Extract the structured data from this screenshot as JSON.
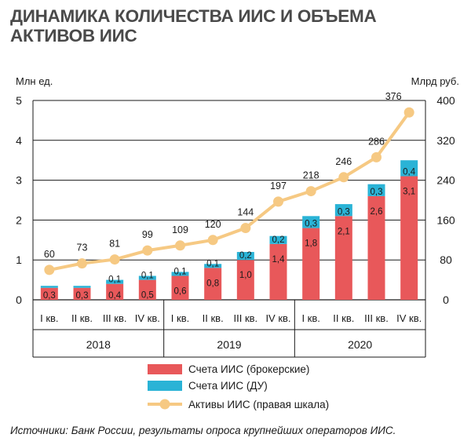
{
  "title_lines": [
    "ДИНАМИКА КОЛИЧЕСТВА ИИС И ОБЪЕМА",
    "АКТИВОВ ИИС"
  ],
  "source": "Источники: Банк России, результаты опроса крупнейших операторов ИИС.",
  "colors": {
    "brokerage": "#e8585a",
    "du": "#2ab3d6",
    "assets": "#f6c983",
    "grid": "#1a1a1a"
  },
  "chart_data": {
    "type": "bar",
    "stacked": true,
    "ylabel_left": "Млн ед.",
    "ylabel_right": "Млрд руб.",
    "ylim_left": [
      0,
      5
    ],
    "ylim_right": [
      0,
      400
    ],
    "yticks_left": [
      "0",
      "1",
      "2",
      "3",
      "4",
      "5"
    ],
    "yticks_right": [
      "0",
      "80",
      "160",
      "240",
      "320",
      "400"
    ],
    "categories": [
      "I кв.",
      "II кв.",
      "III кв.",
      "IV кв.",
      "I кв.",
      "II кв.",
      "III кв.",
      "IV кв.",
      "I кв.",
      "II кв.",
      "III кв.",
      "IV кв."
    ],
    "years": [
      {
        "label": "2018",
        "count": 4
      },
      {
        "label": "2019",
        "count": 4
      },
      {
        "label": "2020",
        "count": 4
      }
    ],
    "series": [
      {
        "name": "Счета ИИС (брокерские)",
        "axis": "left",
        "kind": "bar",
        "values": [
          0.3,
          0.3,
          0.4,
          0.5,
          0.6,
          0.8,
          1.0,
          1.4,
          1.8,
          2.1,
          2.6,
          3.1
        ],
        "labels": [
          "0,3",
          "0,3",
          "0,4",
          "0,5",
          "0,6",
          "0,8",
          "1,0",
          "1,4",
          "1,8",
          "2,1",
          "2,6",
          "3,1"
        ]
      },
      {
        "name": "Счета ИИС (ДУ)",
        "axis": "left",
        "kind": "bar",
        "values": [
          0.05,
          0.05,
          0.1,
          0.1,
          0.1,
          0.1,
          0.2,
          0.2,
          0.3,
          0.3,
          0.3,
          0.4
        ],
        "labels": [
          "",
          "",
          "0,1",
          "0,1",
          "0,1",
          "0,1",
          "0,2",
          "0,2",
          "0,3",
          "0,3",
          "0,3",
          "0,4"
        ]
      },
      {
        "name": "Активы ИИС (правая шкала)",
        "axis": "right",
        "kind": "line",
        "values": [
          60,
          73,
          81,
          99,
          109,
          120,
          144,
          197,
          218,
          246,
          286,
          376
        ],
        "labels": [
          "60",
          "73",
          "81",
          "99",
          "109",
          "120",
          "144",
          "197",
          "218",
          "246",
          "286",
          "376"
        ]
      }
    ],
    "legend_position": "bottom",
    "grid": true
  }
}
